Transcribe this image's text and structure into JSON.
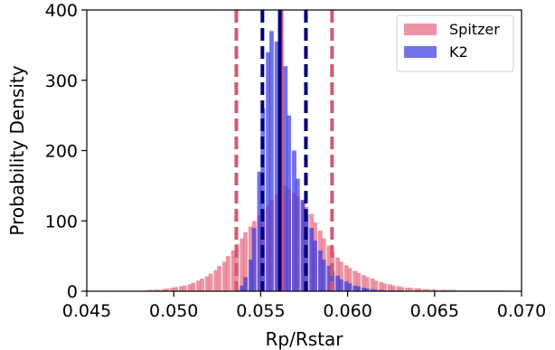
{
  "chart_data": {
    "type": "histogram",
    "xlabel": "Rp/Rstar",
    "ylabel": "Probability Density",
    "xlim": [
      0.045,
      0.07
    ],
    "ylim": [
      0,
      400
    ],
    "xticks": [
      0.045,
      0.05,
      0.055,
      0.06,
      0.065,
      0.07
    ],
    "xtick_labels": [
      "0.045",
      "0.050",
      "0.055",
      "0.060",
      "0.065",
      "0.070"
    ],
    "yticks": [
      0,
      100,
      200,
      300,
      400
    ],
    "ytick_labels": [
      "0",
      "100",
      "200",
      "300",
      "400"
    ],
    "grid": false,
    "legend_position": "top-right",
    "series": [
      {
        "name": "Spitzer",
        "color": "#e8768a",
        "bin_width": 0.00025,
        "bins": [
          [
            0.0483,
            1
          ],
          [
            0.0485,
            2
          ],
          [
            0.0488,
            2
          ],
          [
            0.049,
            2
          ],
          [
            0.0493,
            3
          ],
          [
            0.0495,
            4
          ],
          [
            0.0498,
            5
          ],
          [
            0.05,
            6
          ],
          [
            0.0503,
            7
          ],
          [
            0.0505,
            8
          ],
          [
            0.0508,
            10
          ],
          [
            0.051,
            12
          ],
          [
            0.0513,
            15
          ],
          [
            0.0515,
            18
          ],
          [
            0.0518,
            21
          ],
          [
            0.052,
            25
          ],
          [
            0.0523,
            30
          ],
          [
            0.0525,
            36
          ],
          [
            0.0528,
            42
          ],
          [
            0.053,
            50
          ],
          [
            0.0533,
            58
          ],
          [
            0.0535,
            67
          ],
          [
            0.0538,
            75
          ],
          [
            0.054,
            84
          ],
          [
            0.0543,
            92
          ],
          [
            0.0545,
            100
          ],
          [
            0.0548,
            108
          ],
          [
            0.055,
            115
          ],
          [
            0.0553,
            122
          ],
          [
            0.0555,
            130
          ],
          [
            0.0558,
            138
          ],
          [
            0.056,
            148
          ],
          [
            0.0563,
            150
          ],
          [
            0.0565,
            145
          ],
          [
            0.0568,
            140
          ],
          [
            0.057,
            135
          ],
          [
            0.0573,
            128
          ],
          [
            0.0575,
            120
          ],
          [
            0.0578,
            110
          ],
          [
            0.058,
            98
          ],
          [
            0.0583,
            86
          ],
          [
            0.0585,
            75
          ],
          [
            0.0588,
            65
          ],
          [
            0.059,
            56
          ],
          [
            0.0593,
            48
          ],
          [
            0.0595,
            42
          ],
          [
            0.0598,
            37
          ],
          [
            0.06,
            33
          ],
          [
            0.0603,
            29
          ],
          [
            0.0605,
            26
          ],
          [
            0.0608,
            23
          ],
          [
            0.061,
            20
          ],
          [
            0.0613,
            18
          ],
          [
            0.0615,
            15
          ],
          [
            0.0618,
            13
          ],
          [
            0.062,
            11
          ],
          [
            0.0623,
            10
          ],
          [
            0.0625,
            8
          ],
          [
            0.0628,
            7
          ],
          [
            0.063,
            6
          ],
          [
            0.0633,
            5
          ],
          [
            0.0635,
            5
          ],
          [
            0.0638,
            4
          ],
          [
            0.064,
            4
          ],
          [
            0.0643,
            3
          ],
          [
            0.0645,
            3
          ],
          [
            0.0648,
            3
          ],
          [
            0.065,
            2
          ],
          [
            0.0653,
            2
          ],
          [
            0.0655,
            2
          ],
          [
            0.0658,
            2
          ],
          [
            0.066,
            2
          ],
          [
            0.0663,
            1
          ],
          [
            0.0665,
            1
          ],
          [
            0.0668,
            1
          ],
          [
            0.067,
            1
          ],
          [
            0.0673,
            1
          ],
          [
            0.0675,
            1
          ],
          [
            0.0678,
            1
          ],
          [
            0.068,
            1
          ],
          [
            0.0683,
            1
          ],
          [
            0.0685,
            1
          ],
          [
            0.0688,
            1
          ]
        ]
      },
      {
        "name": "K2",
        "color": "#3b3be0",
        "bin_width": 0.00025,
        "bins": [
          [
            0.0535,
            3
          ],
          [
            0.0538,
            8
          ],
          [
            0.054,
            20
          ],
          [
            0.0543,
            45
          ],
          [
            0.0545,
            90
          ],
          [
            0.0548,
            170
          ],
          [
            0.055,
            260
          ],
          [
            0.0553,
            340
          ],
          [
            0.0555,
            370
          ],
          [
            0.0558,
            355
          ],
          [
            0.056,
            400
          ],
          [
            0.0563,
            320
          ],
          [
            0.0565,
            250
          ],
          [
            0.0568,
            200
          ],
          [
            0.057,
            160
          ],
          [
            0.0573,
            130
          ],
          [
            0.0575,
            110
          ],
          [
            0.0578,
            90
          ],
          [
            0.058,
            72
          ],
          [
            0.0583,
            58
          ],
          [
            0.0585,
            45
          ],
          [
            0.0588,
            36
          ],
          [
            0.059,
            28
          ],
          [
            0.0593,
            22
          ],
          [
            0.0595,
            17
          ],
          [
            0.0598,
            14
          ],
          [
            0.06,
            11
          ],
          [
            0.0603,
            8
          ],
          [
            0.0605,
            7
          ],
          [
            0.0608,
            5
          ],
          [
            0.061,
            4
          ],
          [
            0.0613,
            3
          ],
          [
            0.0615,
            2
          ],
          [
            0.0618,
            2
          ],
          [
            0.062,
            1
          ],
          [
            0.0623,
            1
          ],
          [
            0.0625,
            1
          ],
          [
            0.0628,
            1
          ],
          [
            0.063,
            1
          ]
        ]
      }
    ],
    "vlines": [
      {
        "series": "Spitzer",
        "x": 0.0536,
        "color": "#d25a72",
        "style": "dashed"
      },
      {
        "series": "Spitzer",
        "x": 0.0562,
        "color": "#d25a72",
        "style": "solid"
      },
      {
        "series": "Spitzer",
        "x": 0.0591,
        "color": "#d25a72",
        "style": "dashed"
      },
      {
        "series": "K2",
        "x": 0.0551,
        "color": "#00007a",
        "style": "dashed"
      },
      {
        "series": "K2",
        "x": 0.0561,
        "color": "#00007a",
        "style": "solid"
      },
      {
        "series": "K2",
        "x": 0.0576,
        "color": "#00007a",
        "style": "dashed"
      }
    ]
  }
}
